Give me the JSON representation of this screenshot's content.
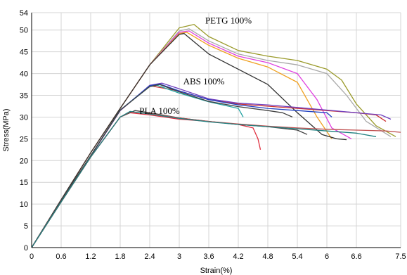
{
  "chart_data": {
    "type": "line",
    "title": "",
    "xlabel": "Strain(%)",
    "ylabel": "Stress(MPa)",
    "xlim": [
      0,
      7.5
    ],
    "ylim": [
      0,
      54
    ],
    "xticks": [
      "0",
      "0.6",
      "1.2",
      "1.8",
      "2.4",
      "3",
      "3.6",
      "4.2",
      "4.8",
      "5.4",
      "6",
      "6.6",
      "7.5"
    ],
    "yticks": [
      "0",
      "5",
      "10",
      "15",
      "20",
      "25",
      "30",
      "35",
      "40",
      "45",
      "50",
      "54"
    ],
    "grid": true,
    "annotations": [
      {
        "text": "PETG 100%",
        "x": 4.0,
        "y": 51.5
      },
      {
        "text": "ABS 100%",
        "x": 3.5,
        "y": 37.5
      },
      {
        "text": "PLA 100%",
        "x": 2.6,
        "y": 30.7
      }
    ],
    "series": [
      {
        "color": "#9a9a2a",
        "x": [
          0,
          0.6,
          1.2,
          1.8,
          2.4,
          3.0,
          3.3,
          3.6,
          4.2,
          4.8,
          5.4,
          6.0,
          6.3,
          6.6,
          7.0,
          7.4
        ],
        "y": [
          0,
          11.0,
          21.8,
          32.0,
          42.0,
          50.5,
          51.3,
          48.5,
          45.3,
          44.0,
          43.0,
          41.0,
          38.5,
          33.0,
          28.0,
          25.5
        ]
      },
      {
        "color": "#a8a8a8",
        "x": [
          0,
          0.6,
          1.2,
          1.8,
          2.4,
          3.0,
          3.2,
          3.6,
          4.2,
          4.8,
          5.4,
          6.0,
          6.4,
          6.8,
          7.3
        ],
        "y": [
          0,
          11.0,
          21.8,
          32.0,
          42.0,
          49.8,
          50.3,
          47.5,
          44.5,
          43.0,
          42.0,
          40.0,
          35.0,
          29.0,
          25.5
        ]
      },
      {
        "color": "#e040e0",
        "x": [
          0,
          0.6,
          1.2,
          1.8,
          2.4,
          3.0,
          3.2,
          3.6,
          4.2,
          4.8,
          5.4,
          5.8,
          6.1,
          6.5
        ],
        "y": [
          0,
          11.0,
          21.8,
          32.0,
          42.0,
          49.5,
          49.8,
          47.0,
          44.0,
          42.5,
          40.0,
          34.0,
          27.5,
          25.0
        ]
      },
      {
        "color": "#f0a020",
        "x": [
          0,
          0.6,
          1.2,
          1.8,
          2.4,
          3.0,
          3.15,
          3.6,
          4.2,
          4.8,
          5.4,
          5.8,
          6.1
        ],
        "y": [
          0,
          11.0,
          21.8,
          32.0,
          42.0,
          49.2,
          49.5,
          46.5,
          43.5,
          41.5,
          38.0,
          30.0,
          25.0
        ]
      },
      {
        "color": "#303030",
        "x": [
          0,
          0.6,
          1.2,
          1.8,
          2.4,
          3.0,
          3.1,
          3.6,
          4.2,
          4.8,
          5.4,
          5.7,
          5.9,
          6.2,
          6.4
        ],
        "y": [
          0,
          11.0,
          21.8,
          32.0,
          42.0,
          49.0,
          49.2,
          44.5,
          41.0,
          37.5,
          31.0,
          28.0,
          26.0,
          25.0,
          24.8
        ]
      },
      {
        "color": "#cc3030",
        "x": [
          0,
          0.6,
          1.2,
          1.8,
          2.4,
          3.0,
          3.6,
          4.2,
          4.8,
          5.4,
          6.0,
          6.6,
          7.0,
          7.2
        ],
        "y": [
          0,
          10.7,
          21.0,
          31.5,
          37.2,
          36.0,
          34.0,
          33.0,
          32.5,
          32.0,
          31.5,
          31.0,
          30.5,
          29.0
        ]
      },
      {
        "color": "#7040c0",
        "x": [
          0,
          0.6,
          1.2,
          1.8,
          2.4,
          2.65,
          3.0,
          3.6,
          4.2,
          4.8,
          5.4,
          6.0,
          6.6,
          7.1,
          7.3
        ],
        "y": [
          0,
          10.7,
          21.0,
          31.5,
          37.3,
          37.8,
          36.5,
          34.2,
          33.2,
          32.8,
          32.2,
          31.6,
          31.0,
          30.5,
          29.5
        ]
      },
      {
        "color": "#2040c0",
        "x": [
          0,
          0.6,
          1.2,
          1.8,
          2.4,
          2.6,
          3.0,
          3.6,
          4.2,
          4.8,
          5.4,
          6.0,
          6.1
        ],
        "y": [
          0,
          10.8,
          21.1,
          31.6,
          37.2,
          37.6,
          36.0,
          34.0,
          32.8,
          32.0,
          31.5,
          31.0,
          30.0
        ]
      },
      {
        "color": "#20a0a0",
        "x": [
          0,
          0.6,
          1.2,
          1.8,
          2.4,
          2.55,
          3.0,
          3.6,
          4.0,
          4.2,
          4.3
        ],
        "y": [
          0,
          10.8,
          21.1,
          31.6,
          37.0,
          37.3,
          35.5,
          33.5,
          32.5,
          32.0,
          30.0
        ]
      },
      {
        "color": "#404040",
        "x": [
          0,
          0.6,
          1.2,
          1.8,
          2.4,
          2.6,
          3.0,
          3.6,
          4.2,
          4.8,
          5.1,
          5.3
        ],
        "y": [
          0,
          10.8,
          21.1,
          31.6,
          37.0,
          37.5,
          35.8,
          33.6,
          32.4,
          31.5,
          31.0,
          30.0
        ]
      },
      {
        "color": "#e03040",
        "x": [
          0,
          0.6,
          1.2,
          1.8,
          2.0,
          2.4,
          3.0,
          3.6,
          4.2,
          4.5,
          4.6,
          4.65
        ],
        "y": [
          0,
          10.5,
          20.8,
          30.0,
          31.0,
          30.5,
          29.5,
          29.0,
          28.3,
          27.5,
          25.0,
          22.5
        ]
      },
      {
        "color": "#404040",
        "x": [
          0,
          0.6,
          1.2,
          1.8,
          2.1,
          2.4,
          3.0,
          3.6,
          4.2,
          4.8,
          5.4,
          5.6
        ],
        "y": [
          0,
          10.5,
          20.8,
          30.0,
          31.5,
          31.0,
          29.8,
          29.0,
          28.3,
          27.8,
          27.0,
          26.0
        ]
      },
      {
        "color": "#c05050",
        "x": [
          0,
          0.6,
          1.2,
          1.8,
          2.0,
          2.4,
          3.0,
          3.6,
          4.2,
          4.8,
          5.4,
          6.0,
          6.6,
          7.2,
          7.5
        ],
        "y": [
          0,
          10.5,
          20.8,
          30.0,
          31.2,
          30.8,
          29.8,
          29.0,
          28.4,
          27.9,
          27.5,
          27.2,
          27.0,
          26.8,
          26.5
        ]
      },
      {
        "color": "#208080",
        "x": [
          0,
          0.6,
          1.2,
          1.8,
          2.0,
          2.4,
          3.0,
          3.6,
          4.2,
          4.8,
          5.4,
          6.0,
          6.6,
          7.0
        ],
        "y": [
          0,
          10.5,
          20.8,
          30.0,
          31.3,
          30.7,
          29.7,
          28.9,
          28.3,
          27.8,
          27.3,
          26.8,
          26.3,
          25.5
        ]
      }
    ]
  }
}
